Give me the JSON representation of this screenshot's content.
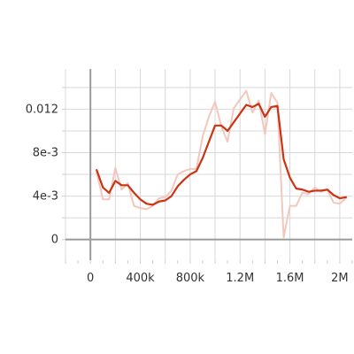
{
  "chart_data": {
    "type": "line",
    "xlim": [
      -200000,
      2100000
    ],
    "ylim": [
      -0.0019,
      0.0157
    ],
    "x_ticks": [
      {
        "value": 0,
        "label": "0"
      },
      {
        "value": 400000,
        "label": "400k"
      },
      {
        "value": 800000,
        "label": "800k"
      },
      {
        "value": 1200000,
        "label": "1.2M"
      },
      {
        "value": 1600000,
        "label": "1.6M"
      },
      {
        "value": 2000000,
        "label": "2M"
      }
    ],
    "y_ticks": [
      {
        "value": 0,
        "label": "0"
      },
      {
        "value": 0.004,
        "label": "4e-3"
      },
      {
        "value": 0.008,
        "label": "8e-3"
      },
      {
        "value": 0.012,
        "label": "0.012"
      }
    ],
    "grid": true,
    "series": [
      {
        "role": "raw",
        "color": "#f3c7bd",
        "x": [
          50000,
          100000,
          150000,
          200000,
          250000,
          300000,
          350000,
          400000,
          450000,
          500000,
          550000,
          600000,
          650000,
          700000,
          750000,
          800000,
          850000,
          900000,
          950000,
          1000000,
          1050000,
          1100000,
          1150000,
          1200000,
          1250000,
          1300000,
          1350000,
          1400000,
          1450000,
          1500000,
          1550000,
          1600000,
          1650000,
          1700000,
          1750000,
          1800000,
          1850000,
          1900000,
          1950000,
          2000000,
          2050000
        ],
        "y": [
          0.0062,
          0.0037,
          0.0037,
          0.0066,
          0.0046,
          0.0052,
          0.0031,
          0.0029,
          0.0028,
          0.0031,
          0.0038,
          0.0039,
          0.0045,
          0.006,
          0.0063,
          0.0065,
          0.0065,
          0.0095,
          0.0113,
          0.0127,
          0.0104,
          0.009,
          0.0121,
          0.0129,
          0.0137,
          0.0117,
          0.0128,
          0.0097,
          0.0135,
          0.0126,
          0.0002,
          0.0031,
          0.0031,
          0.0043,
          0.0042,
          0.0048,
          0.0044,
          0.0046,
          0.0034,
          0.0033,
          0.0038
        ]
      },
      {
        "role": "smoothed",
        "color": "#cc3311",
        "x": [
          50000,
          100000,
          150000,
          200000,
          250000,
          300000,
          350000,
          400000,
          450000,
          500000,
          550000,
          600000,
          650000,
          700000,
          750000,
          800000,
          850000,
          900000,
          950000,
          1000000,
          1050000,
          1100000,
          1150000,
          1200000,
          1250000,
          1300000,
          1350000,
          1400000,
          1450000,
          1500000,
          1550000,
          1600000,
          1650000,
          1700000,
          1750000,
          1800000,
          1850000,
          1900000,
          1950000,
          2000000,
          2050000
        ],
        "y": [
          0.0064,
          0.0048,
          0.0043,
          0.0054,
          0.005,
          0.005,
          0.0043,
          0.0037,
          0.0033,
          0.0032,
          0.0035,
          0.0036,
          0.004,
          0.0049,
          0.0055,
          0.006,
          0.0063,
          0.0075,
          0.009,
          0.0105,
          0.0105,
          0.01,
          0.0108,
          0.0116,
          0.0124,
          0.0122,
          0.0125,
          0.0113,
          0.0122,
          0.0123,
          0.0074,
          0.0057,
          0.0047,
          0.0046,
          0.0044,
          0.0045,
          0.0045,
          0.0046,
          0.0041,
          0.0038,
          0.0039
        ]
      }
    ]
  }
}
